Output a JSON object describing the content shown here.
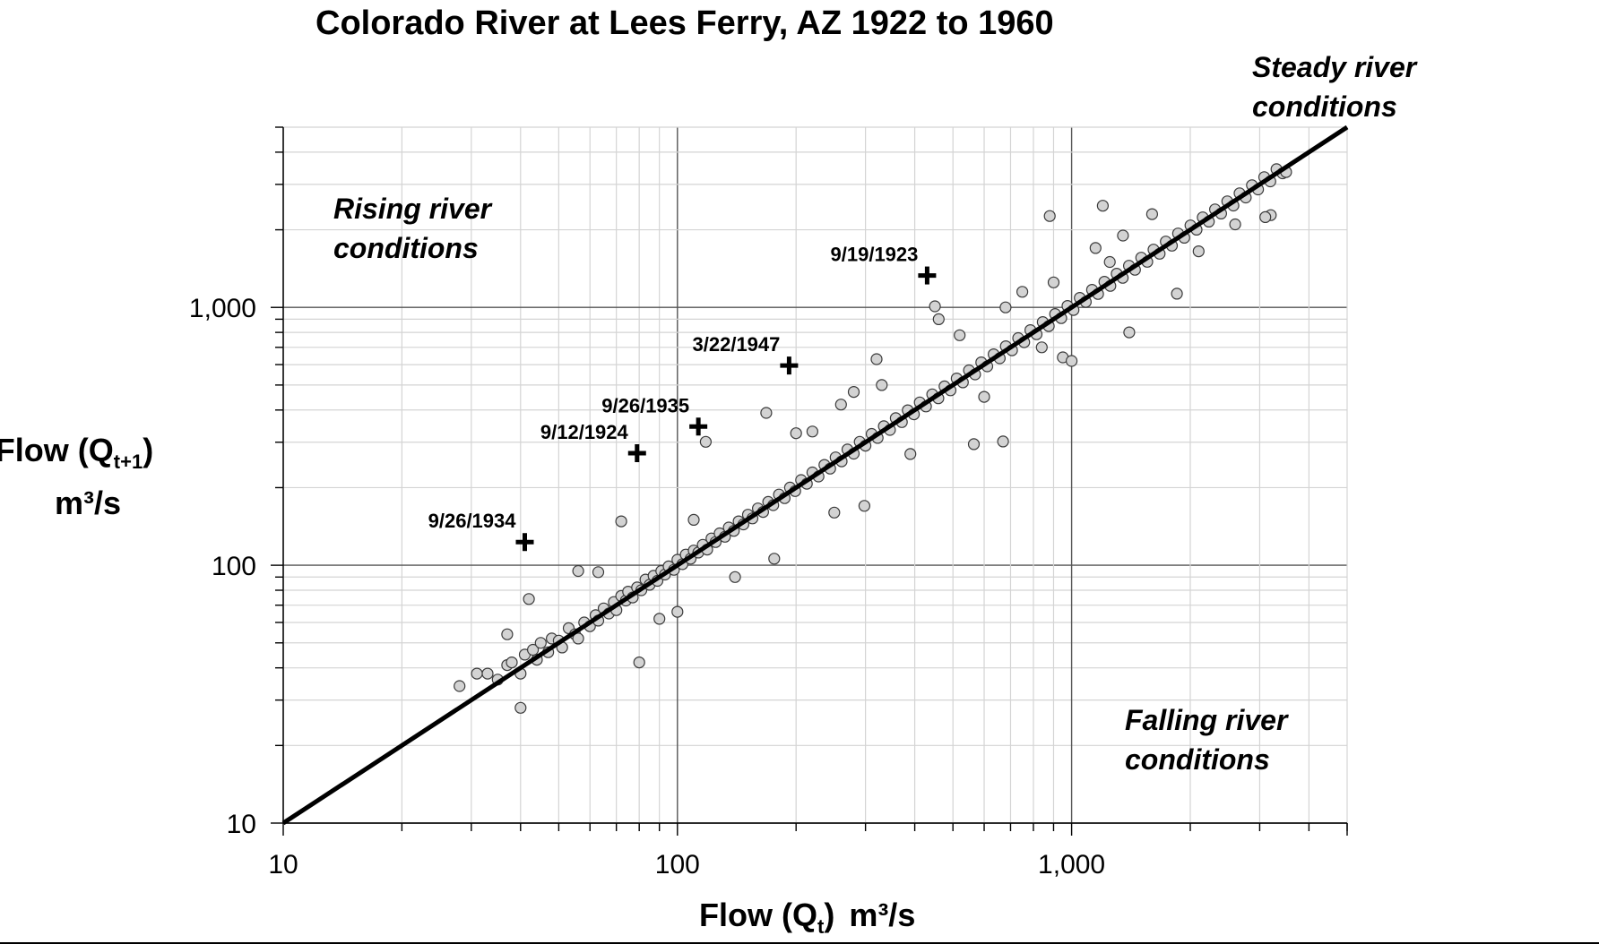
{
  "chart_data": {
    "type": "scatter",
    "title": "Colorado River at Lees Ferry, AZ 1922 to 1960",
    "xlabel": {
      "main": "Flow (Q",
      "sub": "t",
      "close": ")",
      "unit": "m³/s"
    },
    "ylabel": {
      "main": "Flow (Q",
      "sub": "t+1",
      "close": ")",
      "unit": "m³/s"
    },
    "xscale": "log",
    "yscale": "log",
    "xlim": [
      10,
      5000
    ],
    "ylim": [
      10,
      5000
    ],
    "grid": true,
    "x_ticks": [
      {
        "value": 10,
        "label": "10"
      },
      {
        "value": 100,
        "label": "100"
      },
      {
        "value": 1000,
        "label": "1,000"
      }
    ],
    "y_ticks": [
      {
        "value": 10,
        "label": "10"
      },
      {
        "value": 100,
        "label": "100"
      },
      {
        "value": 1000,
        "label": "1,000"
      }
    ],
    "reference_line": {
      "from": [
        10,
        10
      ],
      "to": [
        5000,
        5000
      ],
      "label": "Steady river conditions"
    },
    "regions": [
      {
        "label": "Rising river conditions"
      },
      {
        "label": "Falling river conditions"
      }
    ],
    "highlighted_events": [
      {
        "date": "9/19/1923",
        "x": 430,
        "y": 1330
      },
      {
        "date": "3/22/1947",
        "x": 192,
        "y": 595
      },
      {
        "date": "9/26/1935",
        "x": 113,
        "y": 345
      },
      {
        "date": "9/12/1924",
        "x": 79,
        "y": 272
      },
      {
        "date": "9/26/1934",
        "x": 41,
        "y": 123
      }
    ],
    "series": [
      {
        "marker": "circle",
        "fill": "#d3d3d3",
        "stroke": "#3a3a3a",
        "points": [
          [
            28,
            34
          ],
          [
            31,
            38
          ],
          [
            33,
            38
          ],
          [
            35,
            36
          ],
          [
            37,
            41
          ],
          [
            38,
            42
          ],
          [
            40,
            38
          ],
          [
            41,
            45
          ],
          [
            43,
            47
          ],
          [
            44,
            43
          ],
          [
            45,
            50
          ],
          [
            47,
            46
          ],
          [
            48,
            52
          ],
          [
            50,
            51
          ],
          [
            51,
            48
          ],
          [
            53,
            57
          ],
          [
            55,
            54
          ],
          [
            56,
            52
          ],
          [
            58,
            60
          ],
          [
            60,
            58
          ],
          [
            62,
            64
          ],
          [
            63,
            61
          ],
          [
            65,
            68
          ],
          [
            67,
            65
          ],
          [
            69,
            72
          ],
          [
            70,
            67
          ],
          [
            72,
            76
          ],
          [
            74,
            73
          ],
          [
            75,
            79
          ],
          [
            77,
            75
          ],
          [
            79,
            82
          ],
          [
            81,
            80
          ],
          [
            83,
            88
          ],
          [
            85,
            84
          ],
          [
            87,
            91
          ],
          [
            89,
            87
          ],
          [
            91,
            95
          ],
          [
            93,
            92
          ],
          [
            95,
            99
          ],
          [
            98,
            96
          ],
          [
            100,
            105
          ],
          [
            103,
            101
          ],
          [
            105,
            110
          ],
          [
            108,
            106
          ],
          [
            110,
            114
          ],
          [
            113,
            112
          ],
          [
            116,
            120
          ],
          [
            119,
            115
          ],
          [
            122,
            127
          ],
          [
            125,
            123
          ],
          [
            128,
            133
          ],
          [
            132,
            129
          ],
          [
            135,
            140
          ],
          [
            139,
            136
          ],
          [
            143,
            148
          ],
          [
            147,
            144
          ],
          [
            151,
            157
          ],
          [
            155,
            152
          ],
          [
            160,
            166
          ],
          [
            165,
            161
          ],
          [
            170,
            176
          ],
          [
            175,
            171
          ],
          [
            181,
            188
          ],
          [
            187,
            182
          ],
          [
            193,
            200
          ],
          [
            199,
            194
          ],
          [
            206,
            214
          ],
          [
            213,
            207
          ],
          [
            220,
            229
          ],
          [
            228,
            221
          ],
          [
            236,
            245
          ],
          [
            244,
            237
          ],
          [
            252,
            262
          ],
          [
            261,
            253
          ],
          [
            270,
            281
          ],
          [
            280,
            271
          ],
          [
            290,
            301
          ],
          [
            300,
            291
          ],
          [
            311,
            323
          ],
          [
            322,
            312
          ],
          [
            334,
            346
          ],
          [
            346,
            335
          ],
          [
            358,
            372
          ],
          [
            371,
            359
          ],
          [
            384,
            399
          ],
          [
            398,
            385
          ],
          [
            412,
            428
          ],
          [
            427,
            413
          ],
          [
            443,
            460
          ],
          [
            459,
            444
          ],
          [
            476,
            494
          ],
          [
            493,
            477
          ],
          [
            511,
            530
          ],
          [
            530,
            512
          ],
          [
            549,
            570
          ],
          [
            569,
            550
          ],
          [
            590,
            612
          ],
          [
            611,
            591
          ],
          [
            634,
            658
          ],
          [
            657,
            635
          ],
          [
            681,
            707
          ],
          [
            706,
            682
          ],
          [
            732,
            760
          ],
          [
            758,
            733
          ],
          [
            786,
            816
          ],
          [
            815,
            787
          ],
          [
            845,
            877
          ],
          [
            875,
            846
          ],
          [
            908,
            943
          ],
          [
            941,
            909
          ],
          [
            976,
            1013
          ],
          [
            1011,
            977
          ],
          [
            1049,
            1089
          ],
          [
            1086,
            1050
          ],
          [
            1127,
            1170
          ],
          [
            1167,
            1128
          ],
          [
            1211,
            1257
          ],
          [
            1254,
            1212
          ],
          [
            1301,
            1351
          ],
          [
            1348,
            1302
          ],
          [
            1398,
            1451
          ],
          [
            1448,
            1399
          ],
          [
            1502,
            1559
          ],
          [
            1556,
            1503
          ],
          [
            1614,
            1676
          ],
          [
            1672,
            1615
          ],
          [
            1734,
            1801
          ],
          [
            1797,
            1735
          ],
          [
            1863,
            1935
          ],
          [
            1931,
            1864
          ],
          [
            2002,
            2079
          ],
          [
            2075,
            2003
          ],
          [
            2151,
            2234
          ],
          [
            2229,
            2152
          ],
          [
            2311,
            2400
          ],
          [
            2395,
            2312
          ],
          [
            2483,
            2579
          ],
          [
            2573,
            2484
          ],
          [
            2668,
            2771
          ],
          [
            2765,
            2669
          ],
          [
            2867,
            2977
          ],
          [
            2971,
            2868
          ],
          [
            3081,
            3199
          ],
          [
            3192,
            3082
          ],
          [
            3310,
            3437
          ],
          [
            3430,
            3311
          ],
          [
            3500,
            3350
          ],
          [
            42,
            74
          ],
          [
            40,
            28
          ],
          [
            37,
            54
          ],
          [
            56,
            95
          ],
          [
            63,
            94
          ],
          [
            72,
            148
          ],
          [
            80,
            42
          ],
          [
            118,
            301
          ],
          [
            100,
            66
          ],
          [
            176,
            106
          ],
          [
            200,
            325
          ],
          [
            298,
            170
          ],
          [
            565,
            295
          ],
          [
            670,
            302
          ],
          [
            880,
            2262
          ],
          [
            1200,
            2480
          ],
          [
            3200,
            2280
          ],
          [
            3100,
            2240
          ],
          [
            1850,
            1130
          ],
          [
            1400,
            800
          ],
          [
            450,
            1010
          ],
          [
            320,
            630
          ],
          [
            280,
            470
          ],
          [
            168,
            390
          ],
          [
            460,
            900
          ],
          [
            840,
            700
          ],
          [
            950,
            640
          ],
          [
            1150,
            1700
          ],
          [
            1350,
            1900
          ],
          [
            1600,
            2300
          ],
          [
            750,
            1150
          ],
          [
            600,
            450
          ],
          [
            390,
            270
          ],
          [
            250,
            160
          ],
          [
            140,
            90
          ],
          [
            90,
            62
          ],
          [
            110,
            150
          ],
          [
            220,
            330
          ],
          [
            330,
            500
          ],
          [
            520,
            780
          ],
          [
            680,
            1000
          ],
          [
            900,
            1250
          ],
          [
            1250,
            1500
          ],
          [
            2100,
            1650
          ],
          [
            2600,
            2100
          ],
          [
            260,
            420
          ],
          [
            1000,
            620
          ]
        ]
      }
    ]
  }
}
